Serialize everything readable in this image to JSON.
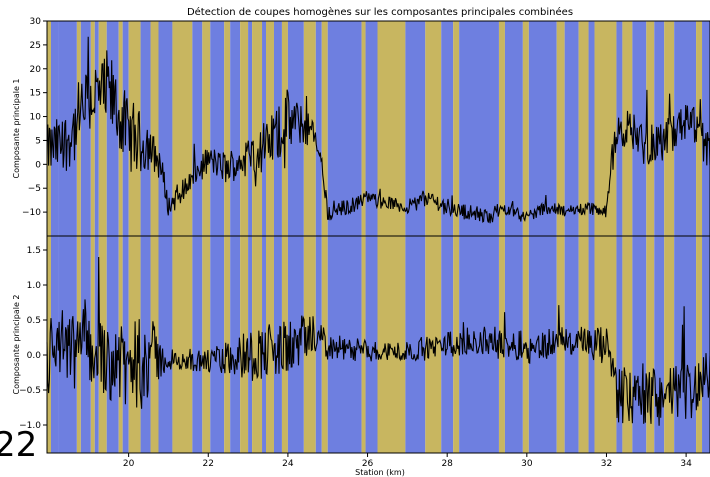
{
  "page_fragment": "22",
  "colors": {
    "segment_a": "#6e7fe0",
    "segment_b": "#c8b660",
    "line": "#000000"
  },
  "chart_data": {
    "type": "line",
    "title": "Détection de coupes homogènes sur les composantes principales combinées",
    "xlabel": "Station (km)",
    "xlim": [
      17.95,
      34.6
    ],
    "x_ticks": [
      20,
      22,
      24,
      26,
      28,
      30,
      32,
      34
    ],
    "x_tick_labels": [
      "20",
      "22",
      "24",
      "26",
      "28",
      "30",
      "32",
      "34"
    ],
    "segment_kinds": [
      "segment_a",
      "segment_b"
    ],
    "segments": [
      [
        17.95,
        18.05,
        "segment_b"
      ],
      [
        18.05,
        18.25,
        "segment_a"
      ],
      [
        18.25,
        18.7,
        "segment_a"
      ],
      [
        18.7,
        18.8,
        "segment_b"
      ],
      [
        18.8,
        19.05,
        "segment_a"
      ],
      [
        19.05,
        19.15,
        "segment_b"
      ],
      [
        19.15,
        19.25,
        "segment_a"
      ],
      [
        19.25,
        19.45,
        "segment_b"
      ],
      [
        19.45,
        19.75,
        "segment_a"
      ],
      [
        19.75,
        19.85,
        "segment_b"
      ],
      [
        19.85,
        20.0,
        "segment_a"
      ],
      [
        20.0,
        20.3,
        "segment_b"
      ],
      [
        20.3,
        20.55,
        "segment_a"
      ],
      [
        20.55,
        20.75,
        "segment_b"
      ],
      [
        20.75,
        21.1,
        "segment_a"
      ],
      [
        21.1,
        21.6,
        "segment_b"
      ],
      [
        21.6,
        21.85,
        "segment_a"
      ],
      [
        21.85,
        22.05,
        "segment_b"
      ],
      [
        22.05,
        22.4,
        "segment_a"
      ],
      [
        22.4,
        22.55,
        "segment_b"
      ],
      [
        22.55,
        22.8,
        "segment_a"
      ],
      [
        22.8,
        23.0,
        "segment_b"
      ],
      [
        23.0,
        23.1,
        "segment_a"
      ],
      [
        23.1,
        23.35,
        "segment_b"
      ],
      [
        23.35,
        23.45,
        "segment_a"
      ],
      [
        23.45,
        23.65,
        "segment_b"
      ],
      [
        23.65,
        23.85,
        "segment_a"
      ],
      [
        23.85,
        24.0,
        "segment_b"
      ],
      [
        24.0,
        24.4,
        "segment_a"
      ],
      [
        24.4,
        24.7,
        "segment_b"
      ],
      [
        24.7,
        24.85,
        "segment_a"
      ],
      [
        24.85,
        25.0,
        "segment_b"
      ],
      [
        25.0,
        25.85,
        "segment_a"
      ],
      [
        25.85,
        25.95,
        "segment_b"
      ],
      [
        25.95,
        26.25,
        "segment_a"
      ],
      [
        26.25,
        26.95,
        "segment_b"
      ],
      [
        26.95,
        27.45,
        "segment_a"
      ],
      [
        27.45,
        27.85,
        "segment_b"
      ],
      [
        27.85,
        28.15,
        "segment_a"
      ],
      [
        28.15,
        28.3,
        "segment_b"
      ],
      [
        28.3,
        29.3,
        "segment_a"
      ],
      [
        29.3,
        29.45,
        "segment_b"
      ],
      [
        29.45,
        29.9,
        "segment_a"
      ],
      [
        29.9,
        30.05,
        "segment_b"
      ],
      [
        30.05,
        30.75,
        "segment_a"
      ],
      [
        30.75,
        30.95,
        "segment_b"
      ],
      [
        30.95,
        31.3,
        "segment_a"
      ],
      [
        31.3,
        31.55,
        "segment_b"
      ],
      [
        31.55,
        31.7,
        "segment_a"
      ],
      [
        31.7,
        32.25,
        "segment_b"
      ],
      [
        32.25,
        32.4,
        "segment_a"
      ],
      [
        32.4,
        32.65,
        "segment_b"
      ],
      [
        32.65,
        33.0,
        "segment_a"
      ],
      [
        33.0,
        33.2,
        "segment_b"
      ],
      [
        33.2,
        33.45,
        "segment_a"
      ],
      [
        33.45,
        33.7,
        "segment_b"
      ],
      [
        33.7,
        34.25,
        "segment_a"
      ],
      [
        34.25,
        34.4,
        "segment_b"
      ],
      [
        34.4,
        34.6,
        "segment_a"
      ]
    ],
    "panels": [
      {
        "ylabel": "Composante principale 1",
        "ylim": [
          -15,
          30
        ],
        "y_ticks": [
          -10,
          -5,
          0,
          5,
          10,
          15,
          20,
          25,
          30
        ],
        "y_tick_labels": [
          "−10",
          "−5",
          "0",
          "5",
          "10",
          "15",
          "20",
          "25",
          "30"
        ],
        "base": [
          [
            17.95,
            3
          ],
          [
            18.5,
            5
          ],
          [
            19.0,
            14
          ],
          [
            19.5,
            15
          ],
          [
            20.0,
            6
          ],
          [
            20.5,
            4
          ],
          [
            20.8,
            0
          ],
          [
            21.0,
            -9
          ],
          [
            21.5,
            -4
          ],
          [
            22.0,
            1
          ],
          [
            22.5,
            -1
          ],
          [
            23.0,
            2
          ],
          [
            23.5,
            4
          ],
          [
            24.0,
            9
          ],
          [
            24.5,
            8
          ],
          [
            24.8,
            3
          ],
          [
            25.0,
            -10
          ],
          [
            25.5,
            -9
          ],
          [
            26.0,
            -7
          ],
          [
            26.5,
            -8
          ],
          [
            27.0,
            -9
          ],
          [
            27.5,
            -7
          ],
          [
            28.0,
            -9
          ],
          [
            28.5,
            -10
          ],
          [
            29.0,
            -11
          ],
          [
            29.5,
            -9
          ],
          [
            30.0,
            -11
          ],
          [
            30.5,
            -9
          ],
          [
            31.0,
            -10
          ],
          [
            31.5,
            -9
          ],
          [
            32.0,
            -10
          ],
          [
            32.2,
            5
          ],
          [
            32.5,
            8
          ],
          [
            33.0,
            4
          ],
          [
            33.5,
            5
          ],
          [
            34.0,
            9
          ],
          [
            34.6,
            2
          ]
        ],
        "noise": [
          [
            17.95,
            8
          ],
          [
            18.6,
            10
          ],
          [
            19.8,
            12
          ],
          [
            20.5,
            8
          ],
          [
            21.0,
            3
          ],
          [
            22.0,
            4
          ],
          [
            23.0,
            6
          ],
          [
            24.0,
            9
          ],
          [
            24.9,
            3
          ],
          [
            26.0,
            2
          ],
          [
            28.0,
            2.5
          ],
          [
            30.0,
            2
          ],
          [
            32.0,
            2
          ],
          [
            32.2,
            6
          ],
          [
            34.6,
            6
          ]
        ]
      },
      {
        "ylabel": "Composante principale 2",
        "ylim": [
          -1.4,
          1.7
        ],
        "y_ticks": [
          -1.0,
          -0.5,
          0.0,
          0.5,
          1.0,
          1.5
        ],
        "y_tick_labels": [
          "−1.0",
          "−0.5",
          "0.0",
          "0.5",
          "1.0",
          "1.5"
        ],
        "base": [
          [
            17.95,
            0.0
          ],
          [
            19.0,
            0.1
          ],
          [
            20.0,
            -0.2
          ],
          [
            20.5,
            0.0
          ],
          [
            21.0,
            -0.1
          ],
          [
            22.0,
            -0.1
          ],
          [
            23.0,
            0.0
          ],
          [
            24.0,
            0.1
          ],
          [
            24.8,
            0.3
          ],
          [
            25.0,
            0.1
          ],
          [
            26.0,
            0.05
          ],
          [
            27.0,
            0.05
          ],
          [
            28.0,
            0.15
          ],
          [
            29.0,
            0.2
          ],
          [
            30.0,
            0.1
          ],
          [
            31.0,
            0.2
          ],
          [
            32.0,
            0.1
          ],
          [
            32.3,
            -0.6
          ],
          [
            33.0,
            -0.6
          ],
          [
            34.0,
            -0.5
          ],
          [
            34.6,
            -0.4
          ]
        ],
        "noise": [
          [
            17.95,
            0.9
          ],
          [
            19.0,
            0.8
          ],
          [
            20.5,
            0.9
          ],
          [
            21.0,
            0.15
          ],
          [
            22.0,
            0.25
          ],
          [
            23.0,
            0.5
          ],
          [
            24.0,
            0.6
          ],
          [
            25.0,
            0.25
          ],
          [
            27.0,
            0.2
          ],
          [
            29.0,
            0.3
          ],
          [
            31.0,
            0.3
          ],
          [
            32.0,
            0.4
          ],
          [
            32.3,
            0.6
          ],
          [
            34.6,
            0.6
          ]
        ]
      }
    ]
  }
}
